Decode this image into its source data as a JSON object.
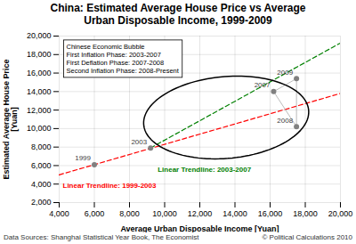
{
  "chart_data": {
    "type": "scatter",
    "title": "China: Estimated Average House Price vs Average\nUrban Disposable Income, 1999-2009",
    "xlabel": "Average Urban Disposable Income [Yuan]",
    "ylabel": "Estimated Average House Price\n[Yuan]",
    "xlim": [
      4000,
      20000
    ],
    "ylim": [
      2000,
      20000
    ],
    "xticks": [
      {
        "value": 4000,
        "label": "4,000"
      },
      {
        "value": 6000,
        "label": "6,000"
      },
      {
        "value": 8000,
        "label": "8,000"
      },
      {
        "value": 10000,
        "label": "10,000"
      },
      {
        "value": 12000,
        "label": "12,000"
      },
      {
        "value": 14000,
        "label": "14,000"
      },
      {
        "value": 16000,
        "label": "16,000"
      },
      {
        "value": 18000,
        "label": "18,000"
      },
      {
        "value": 20000,
        "label": "20,000"
      }
    ],
    "yticks": [
      {
        "value": 2000,
        "label": "2,000"
      },
      {
        "value": 4000,
        "label": "4,000"
      },
      {
        "value": 6000,
        "label": "6,000"
      },
      {
        "value": 8000,
        "label": "8,000"
      },
      {
        "value": 10000,
        "label": "10,000"
      },
      {
        "value": 12000,
        "label": "12,000"
      },
      {
        "value": 14000,
        "label": "14,000"
      },
      {
        "value": 16000,
        "label": "16,000"
      },
      {
        "value": 18000,
        "label": "18,000"
      },
      {
        "value": 20000,
        "label": "20,000"
      }
    ],
    "grid": true,
    "labels": [
      "1999",
      "2003",
      "2007",
      "2008",
      "2009"
    ],
    "x": [
      6000,
      9200,
      16200,
      17500,
      17500
    ],
    "values": [
      6100,
      7900,
      14000,
      10200,
      15400
    ],
    "color": "#808080",
    "marker": "circle",
    "connections": [
      [
        "2007",
        "2009"
      ],
      [
        "2007",
        "2008"
      ],
      [
        "2008",
        "2009"
      ]
    ],
    "trendlines": [
      {
        "label": "Linear Trendline: 1999-2003",
        "color": "#ff0000",
        "line_style": "dashed",
        "x": [
          4000,
          20000
        ],
        "y": [
          5000,
          13800
        ]
      },
      {
        "label": "Linear Trendline: 2003-2007",
        "color": "#008000",
        "line_style": "dashed",
        "x": [
          9200,
          20000
        ],
        "y": [
          7910,
          19250
        ]
      }
    ],
    "ellipse": {
      "center": [
        13500,
        11200
      ],
      "width": 9800,
      "height": 8500,
      "angle": 35,
      "color": "#000000"
    },
    "annotation_box": [
      "Chinese Economic Bubble",
      "First Inflation Phase: 2003-2007",
      "First Deflation Phase: 2007-2008",
      "Second Inflation Phase: 2008-Present"
    ],
    "footnotes": [
      "Data Sources: Shanghai Statistical Year Book, The Economist",
      "© Political Calculations 2010"
    ]
  }
}
